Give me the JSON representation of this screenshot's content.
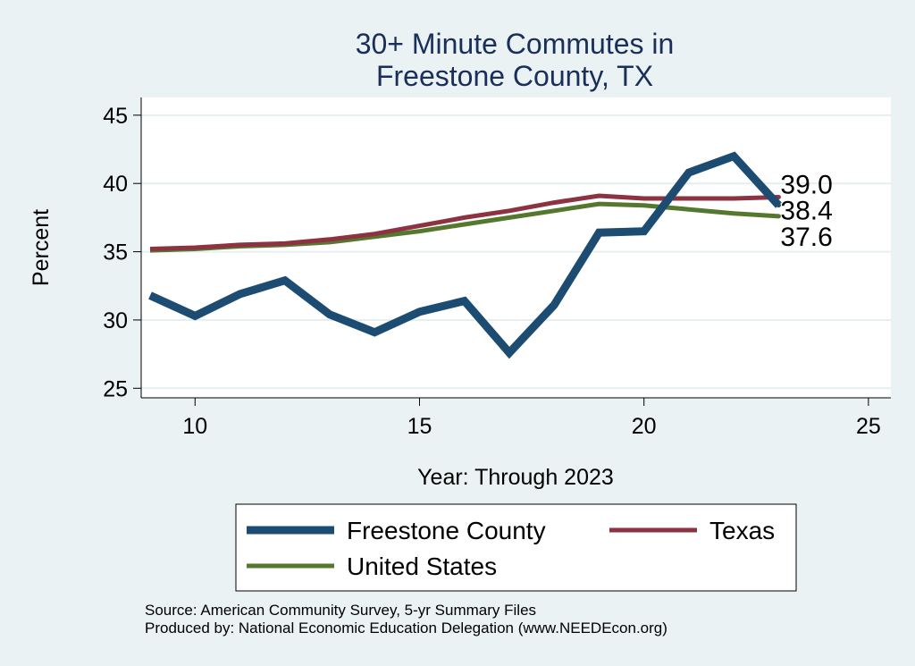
{
  "chart_data": {
    "type": "line",
    "title_lines": [
      "30+ Minute Commutes in",
      "Freestone County, TX"
    ],
    "xlabel": "Year: Through 2023",
    "ylabel": "Percent",
    "xlim": [
      8.8,
      25.5
    ],
    "ylim": [
      24.3,
      46.3
    ],
    "xticks": [
      10,
      15,
      20,
      25
    ],
    "yticks": [
      25,
      30,
      35,
      40,
      45
    ],
    "series": [
      {
        "name": "Freestone County",
        "color": "#1c4c72",
        "x": [
          9,
          10,
          11,
          12,
          13,
          14,
          15,
          16,
          17,
          18,
          19,
          20,
          21,
          22,
          23
        ],
        "values": [
          31.8,
          30.3,
          31.9,
          32.9,
          30.4,
          29.1,
          30.6,
          31.4,
          27.6,
          31.1,
          36.4,
          36.5,
          40.8,
          42.0,
          38.4
        ]
      },
      {
        "name": "Texas",
        "color": "#8c3240",
        "x": [
          9,
          10,
          11,
          12,
          13,
          14,
          15,
          16,
          17,
          18,
          19,
          20,
          21,
          22,
          23
        ],
        "values": [
          35.2,
          35.3,
          35.5,
          35.6,
          35.9,
          36.3,
          36.9,
          37.5,
          38.0,
          38.6,
          39.1,
          38.9,
          38.9,
          38.9,
          39.0
        ]
      },
      {
        "name": "United States",
        "color": "#55782f",
        "x": [
          9,
          10,
          11,
          12,
          13,
          14,
          15,
          16,
          17,
          18,
          19,
          20,
          21,
          22,
          23
        ],
        "values": [
          35.1,
          35.2,
          35.4,
          35.5,
          35.7,
          36.1,
          36.5,
          37.0,
          37.5,
          38.0,
          38.5,
          38.4,
          38.1,
          37.8,
          37.6
        ]
      }
    ],
    "end_labels": [
      "39.0",
      "38.4",
      "37.6"
    ],
    "legend": [
      "Freestone County",
      "Texas",
      "United States"
    ],
    "notes": [
      "Source: American Community Survey, 5-yr Summary Files",
      "Produced by: National Economic Education Delegation (www.NEEDEcon.org)"
    ]
  }
}
